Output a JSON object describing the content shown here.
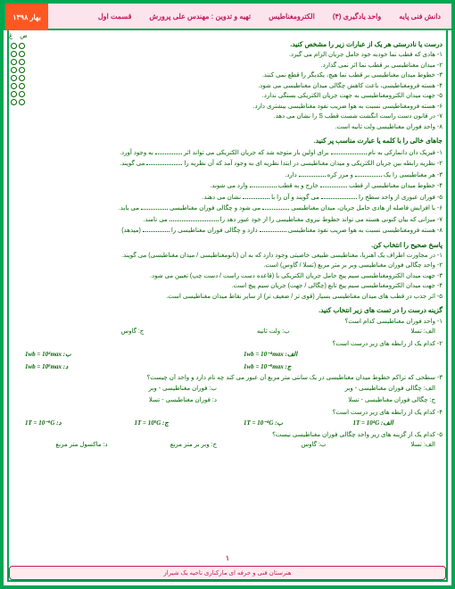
{
  "header": {
    "right1": "دانش فنی پایه",
    "right2": "واحد یادگیری (۴)",
    "middle": "الکترومغناطیس",
    "author": "تهیه و تدوین : مهندس علی پرورش",
    "section": "قسمت اول",
    "date": "بهار ۱۳۹۸"
  },
  "marks": {
    "s": "ص",
    "gh": "غ"
  },
  "sec1": {
    "title": "درست یا نادرستی هر یک از عبارات زیر را مشخص کنید.",
    "q1": "۱- هادی که قطب نما خودبه خود حامل جریان الزام می گیرد.",
    "q2": "۲- میدان مغناطیسی بر قطب نما اثر نمی گذارد.",
    "q3": "۳- خطوط میدان مغناطیسی بر قطب نما هیچ، یکدیگر را قطع نمی کنند.",
    "q4": "۴- هسته فرومغناطیسی، باعث کاهش چگالی میدان مغناطیسی می شود.",
    "q5": "۵- جهت میدان الکترومغناطیسی به جهت جریان الکتریکی بستگی ندارد.",
    "q6": "۶- هسته فرومغناطیسی نسبت به هوا ضریب نفوذ مغناطیسی بیشتری دارد.",
    "q7": "۷- در قانون دست راست انگشت شست قطب S را نشان می دهد.",
    "q8": "۸- واحد فوران مغناطیسی ولت ثانیه است."
  },
  "sec2": {
    "title": "جاهای خالی را با کلمه یا عبارت مناسب پر کنید.",
    "q1a": "۱- فیزیک دان دانمارکی به نام",
    "q1b": "برای اولین بار متوجه شد که جریان الکتریکی می تواند اثر",
    "q1c": "به وجود آورد.",
    "q2a": "۲- نظریه رابطه بین جریان الکتریکی و میدان مغناطیسی در ابتدا نظریه ای به وجود آمد که آن نظریه را",
    "q2b": "می گویند.",
    "q3a": "۳- هر مغناطیسی را یک",
    "q3b": "و مرز کره",
    "q3c": "دارد.",
    "q4a": "۴- خطوط میدان مغناطیسی از قطب",
    "q4b": "خارج و به قطب",
    "q4c": "وارد می شوند.",
    "q5a": "۵- فوران عبوری از واحد سطح را",
    "q5b": "می گویند و آن را با",
    "q5c": "نشان می دهند.",
    "q6a": "۶- با افزایش فاصله از هادی حامل جریان، میدان مغناطیسی",
    "q6b": "می شود و چگالی فوران مغناطیسی",
    "q6c": "می یابد.",
    "q7a": "۷- میزانی که بیان کنونی هسته می تواند خطوط نیروی مغناطیسی را از خود عبور دهد را",
    "q7b": "می نامند.",
    "q8a": "۸- هسته فرومغناطیسی نسبت به هوا ضریب نفوذ مغناطیسی",
    "q8b": "دارد و چگالی فوران مغناطیسی را",
    "q8c": "(میدهد)"
  },
  "sec3": {
    "title": "پاسخ صحیح را انتخاب کن.",
    "q1": "۱- در مجاورت اطراف یک آهنربا، مغناطیسی طبیعی خاصیتی وجود دارد که به آن (نانومغناطیسی / میدان مغناطیسی) می گویند.",
    "q2": "۲- واحد چگالی فوران مغناطیسی وبر بر متر مربع (تسلا / گاوس) است.",
    "q3": "۳- جهت میدان الکترومغناطیسی سیم پیچ حامل جریان الکتریکی با (قاعده دست راست / دست چپ) تعیین می شود.",
    "q4": "۴- جهت میدان الکترومغناطیسی سیم پیچ تابع (چگالی / جهت) جریان سیم پیچ است.",
    "q5": "۵- اثر جذب در قطب های میدان مغناطیسی بسیار (قوی تر / ضعیف تر) از سایر نقاط میدان مغناطیسی است."
  },
  "sec4": {
    "title": "گزینه درست را در تست های زیر انتخاب کنید.",
    "q1": "۱- واحد فوران مغناطیسی کدام است؟",
    "q1a": "الف: تسلا",
    "q1b": "ب: ولت ثانیه",
    "q1c": "ج: گاوس",
    "q2": "۲- کدام یک از رابطه های زیر درست است؟",
    "q2a": "1wb = 10⁻⁴max :الف",
    "q2b": "1wb = 10⁴max :ب",
    "q2c": "1wb = 10⁻⁸max :ج",
    "q2d": "1wb = 10⁸max :د",
    "q3": "۳- سطحی که تراکم خطوط میدان مغناطیسی در یک سانتی متر مربع آن عبور می کند چه نام دارد و واحد آن چیست؟",
    "q3a": "الف: چگالی فوران مغناطیسی - وبر",
    "q3b": "ب: فوران مغناطیسی - وبر",
    "q3c": "ج: چگالی فوران مغناطیسی - تسلا",
    "q3d": "د: فوران مغناطیسی - تسلا",
    "q4": "۴- کدام یک از رابطه های زیر درست است؟",
    "q4a": "1T = 10⁴G :الف",
    "q4b": "1T = 10⁻⁴G :ب",
    "q4c": "1T = 10⁸G :ج",
    "q4d": "1T = 10⁻⁸G :د",
    "q5": "۵- کدام یک از گزینه های زیر واحد چگالی فوران مغناطیسی نیست؟",
    "q5a": "الف: تسلا",
    "q5b": "ب: گاوس",
    "q5c": "ج: وبر بر متر مربع",
    "q5d": "د: ماکسول متر مربع"
  },
  "footer": {
    "page": "۱",
    "text": "هنرستان فنی و حرفه ای مارکناری ناحیه یک شیراز"
  }
}
